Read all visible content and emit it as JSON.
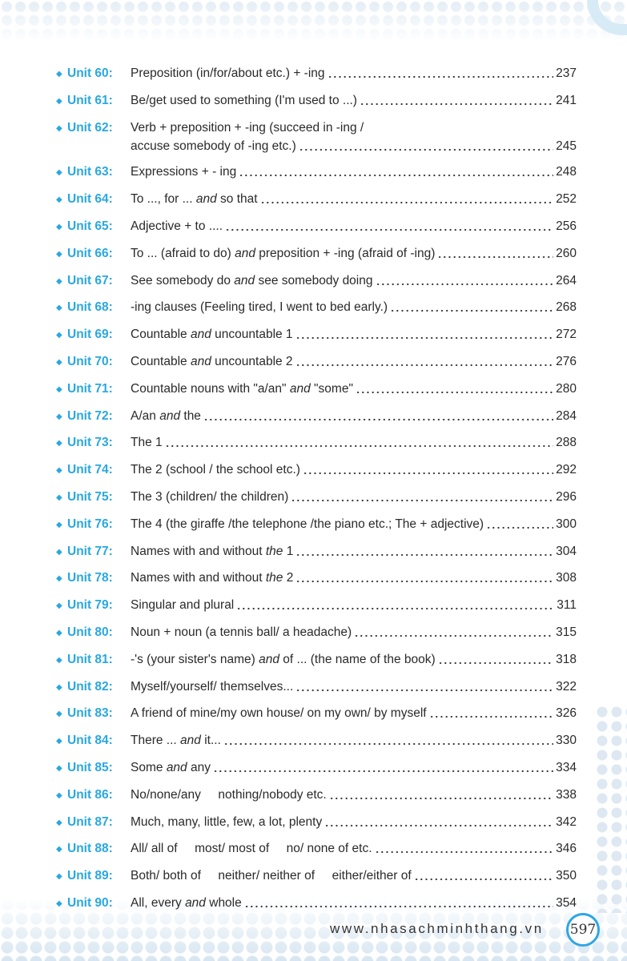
{
  "accent_color": "#29a8e0",
  "bullet_icon": "diamond-bullet",
  "entries": [
    {
      "unit": "Unit 60:",
      "lines": [
        [
          [
            "Preposition (in/for/about etc.) + -ing",
            0
          ]
        ]
      ],
      "page": "237"
    },
    {
      "unit": "Unit 61:",
      "lines": [
        [
          [
            "Be/get used to something (I'm used to ...)",
            0
          ]
        ]
      ],
      "page": "241"
    },
    {
      "unit": "Unit 62:",
      "lines": [
        [
          [
            "Verb + preposition + -ing (succeed in -ing /",
            0
          ]
        ],
        [
          [
            "accuse somebody of -ing etc.)",
            0
          ]
        ]
      ],
      "page": "245"
    },
    {
      "unit": "Unit 63:",
      "lines": [
        [
          [
            "Expressions + - ing",
            0
          ]
        ]
      ],
      "page": "248"
    },
    {
      "unit": "Unit 64:",
      "lines": [
        [
          [
            "To ..., for ... ",
            0
          ],
          [
            "and",
            1
          ],
          [
            " so that",
            0
          ]
        ]
      ],
      "page": "252"
    },
    {
      "unit": "Unit 65:",
      "lines": [
        [
          [
            "Adjective + to ....",
            0
          ]
        ]
      ],
      "page": "256"
    },
    {
      "unit": "Unit 66:",
      "lines": [
        [
          [
            "To ... (afraid to do) ",
            0
          ],
          [
            "and",
            1
          ],
          [
            " preposition + -ing (afraid of -ing)",
            0
          ]
        ]
      ],
      "page": "260"
    },
    {
      "unit": "Unit 67:",
      "lines": [
        [
          [
            "See somebody do ",
            0
          ],
          [
            "and",
            1
          ],
          [
            " see somebody doing",
            0
          ]
        ]
      ],
      "page": "264"
    },
    {
      "unit": "Unit 68:",
      "lines": [
        [
          [
            "-ing clauses (Feeling tired, I went to bed early.)",
            0
          ]
        ]
      ],
      "page": "268"
    },
    {
      "unit": "Unit 69:",
      "lines": [
        [
          [
            "Countable ",
            0
          ],
          [
            "and",
            1
          ],
          [
            " uncountable 1",
            0
          ]
        ]
      ],
      "page": "272"
    },
    {
      "unit": "Unit 70:",
      "lines": [
        [
          [
            "Countable ",
            0
          ],
          [
            "and",
            1
          ],
          [
            " uncountable 2",
            0
          ]
        ]
      ],
      "page": "276"
    },
    {
      "unit": "Unit 71:",
      "lines": [
        [
          [
            "Countable nouns with \"a/an\" ",
            0
          ],
          [
            "and",
            1
          ],
          [
            " \"some\"",
            0
          ]
        ]
      ],
      "page": "280"
    },
    {
      "unit": "Unit 72:",
      "lines": [
        [
          [
            "A/an ",
            0
          ],
          [
            "and",
            1
          ],
          [
            " the",
            0
          ]
        ]
      ],
      "page": "284"
    },
    {
      "unit": "Unit 73:",
      "lines": [
        [
          [
            "The 1",
            0
          ]
        ]
      ],
      "page": "288"
    },
    {
      "unit": "Unit 74:",
      "lines": [
        [
          [
            "The 2 (school / the school etc.)",
            0
          ]
        ]
      ],
      "page": "292"
    },
    {
      "unit": "Unit 75:",
      "lines": [
        [
          [
            "The 3 (children/ the children)",
            0
          ]
        ]
      ],
      "page": "296"
    },
    {
      "unit": "Unit 76:",
      "lines": [
        [
          [
            "The 4 (the giraffe /the telephone /the piano etc.; The + adjective)",
            0
          ]
        ]
      ],
      "page": "300"
    },
    {
      "unit": "Unit 77:",
      "lines": [
        [
          [
            "Names with and without ",
            0
          ],
          [
            "the",
            1
          ],
          [
            " 1",
            0
          ]
        ]
      ],
      "page": "304"
    },
    {
      "unit": "Unit 78:",
      "lines": [
        [
          [
            "Names with and without ",
            0
          ],
          [
            "the",
            1
          ],
          [
            " 2",
            0
          ]
        ]
      ],
      "page": "308"
    },
    {
      "unit": "Unit 79:",
      "lines": [
        [
          [
            "Singular and plural",
            0
          ]
        ]
      ],
      "page": "311"
    },
    {
      "unit": "Unit 80:",
      "lines": [
        [
          [
            "Noun + noun (a tennis ball/ a headache)",
            0
          ]
        ]
      ],
      "page": "315"
    },
    {
      "unit": "Unit 81:",
      "lines": [
        [
          [
            "-'s (your sister's name) ",
            0
          ],
          [
            "and",
            1
          ],
          [
            " of ... (the name of the book)",
            0
          ]
        ]
      ],
      "page": "318"
    },
    {
      "unit": "Unit 82:",
      "lines": [
        [
          [
            "Myself/yourself/ themselves...",
            0
          ]
        ]
      ],
      "page": "322"
    },
    {
      "unit": "Unit 83:",
      "lines": [
        [
          [
            "A friend of mine/my own house/ on my own/ by myself",
            0
          ]
        ]
      ],
      "page": "326"
    },
    {
      "unit": "Unit 84:",
      "lines": [
        [
          [
            "There ... ",
            0
          ],
          [
            "and",
            1
          ],
          [
            " it...",
            0
          ]
        ]
      ],
      "page": "330"
    },
    {
      "unit": "Unit 85:",
      "lines": [
        [
          [
            "Some ",
            0
          ],
          [
            "and",
            1
          ],
          [
            " any",
            0
          ]
        ]
      ],
      "page": "334"
    },
    {
      "unit": "Unit 86:",
      "lines": [
        [
          [
            "No/none/any     nothing/nobody etc.",
            0
          ]
        ]
      ],
      "page": "338"
    },
    {
      "unit": "Unit 87:",
      "lines": [
        [
          [
            "Much, many, little, few, a lot, plenty",
            0
          ]
        ]
      ],
      "page": "342"
    },
    {
      "unit": "Unit 88:",
      "lines": [
        [
          [
            "All/ all of     most/ most of     no/ none of etc.",
            0
          ]
        ]
      ],
      "page": "346"
    },
    {
      "unit": "Unit 89:",
      "lines": [
        [
          [
            "Both/ both of     neither/ neither of     either/either of",
            0
          ]
        ]
      ],
      "page": "350"
    },
    {
      "unit": "Unit 90:",
      "lines": [
        [
          [
            "All, every ",
            0
          ],
          [
            "and",
            1
          ],
          [
            " whole",
            0
          ]
        ]
      ],
      "page": "354"
    }
  ],
  "footer": {
    "website": "www.nhasachminhthang.vn",
    "page_number": "597"
  }
}
